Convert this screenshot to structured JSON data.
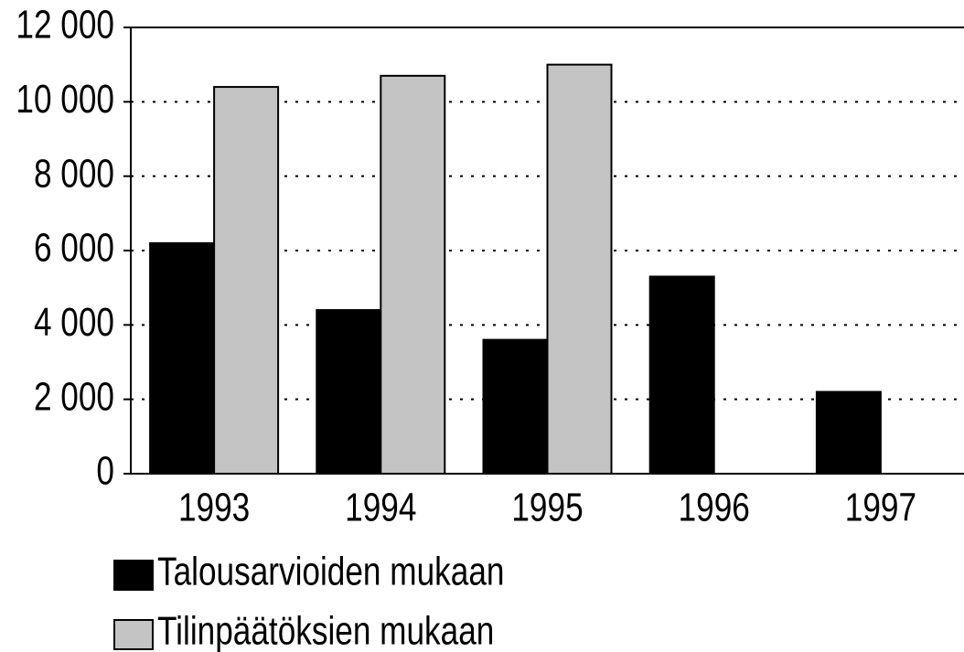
{
  "chart_data": {
    "type": "bar",
    "categories": [
      "1993",
      "1994",
      "1995",
      "1996",
      "1997"
    ],
    "series": [
      {
        "name": "Talousarvioiden mukaan",
        "color": "#000000",
        "values": [
          6200,
          4400,
          3600,
          5300,
          2200
        ]
      },
      {
        "name": "Tilinpäätöksien mukaan",
        "color": "#c4c4c4",
        "values": [
          10400,
          10700,
          11000,
          null,
          null
        ]
      }
    ],
    "ylim": [
      0,
      12000
    ],
    "yticks": [
      0,
      {
        "value": 2000,
        "label": "2 000"
      },
      {
        "value": 4000,
        "label": "4 000"
      },
      {
        "value": 6000,
        "label": "6 000"
      },
      {
        "value": 8000,
        "label": "8 000"
      },
      {
        "value": 10000,
        "label": "10 000"
      },
      {
        "value": 12000,
        "label": "12 000"
      }
    ],
    "grid": true
  }
}
